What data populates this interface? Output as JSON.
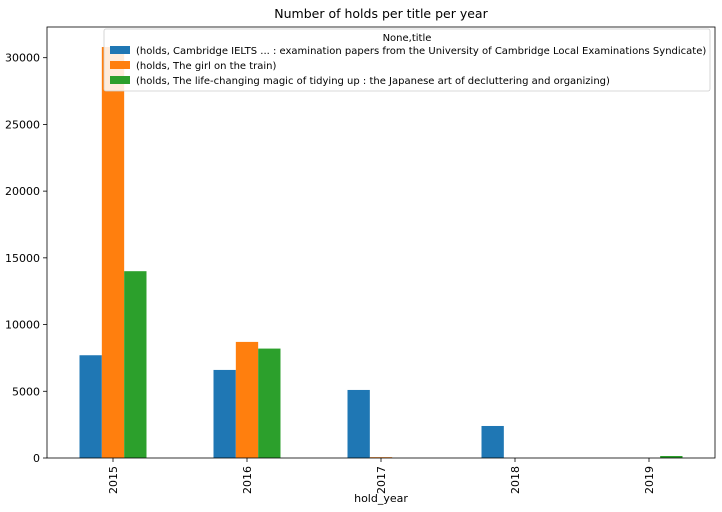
{
  "chart_data": {
    "type": "bar",
    "title": "Number of holds per title per year",
    "xlabel": "hold_year",
    "ylabel": "",
    "categories": [
      "2015",
      "2016",
      "2017",
      "2018",
      "2019"
    ],
    "ylim": [
      0,
      32300
    ],
    "yticks": [
      0,
      5000,
      10000,
      15000,
      20000,
      25000,
      30000
    ],
    "ytick_labels": [
      "0",
      "5000",
      "10000",
      "15000",
      "20000",
      "25000",
      "30000"
    ],
    "legend_title": "None,title",
    "legend_position": "top-right",
    "series": [
      {
        "name": "(holds, Cambridge IELTS ... : examination papers from the University of Cambridge Local Examinations Syndicate)",
        "color": "#1f77b4",
        "values": [
          7700,
          6600,
          5100,
          2400,
          0
        ]
      },
      {
        "name": "(holds, The girl on the train)",
        "color": "#ff7f0e",
        "values": [
          30800,
          8700,
          60,
          0,
          0
        ]
      },
      {
        "name": "(holds, The life-changing magic of tidying up : the Japanese art of decluttering and organizing)",
        "color": "#2ca02c",
        "values": [
          14000,
          8200,
          0,
          0,
          150
        ]
      }
    ]
  }
}
